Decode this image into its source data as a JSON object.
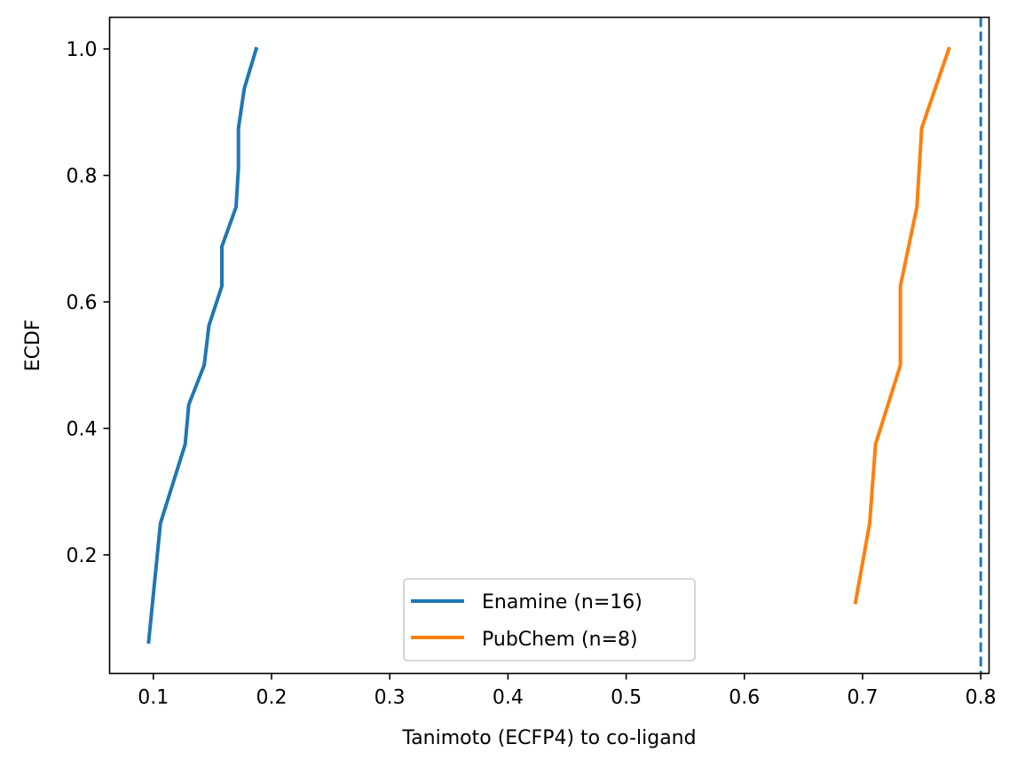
{
  "chart_data": {
    "type": "line",
    "title": "",
    "xlabel": "Tanimoto (ECFP4) to co-ligand",
    "ylabel": "ECDF",
    "xlim": [
      0.063,
      0.807
    ],
    "ylim": [
      0.0125,
      1.05
    ],
    "xticks": [
      {
        "value": 0.1,
        "label": "0.1"
      },
      {
        "value": 0.2,
        "label": "0.2"
      },
      {
        "value": 0.3,
        "label": "0.3"
      },
      {
        "value": 0.4,
        "label": "0.4"
      },
      {
        "value": 0.5,
        "label": "0.5"
      },
      {
        "value": 0.6,
        "label": "0.6"
      },
      {
        "value": 0.7,
        "label": "0.7"
      },
      {
        "value": 0.8,
        "label": "0.8"
      }
    ],
    "yticks": [
      {
        "value": 0.2,
        "label": "0.2"
      },
      {
        "value": 0.4,
        "label": "0.4"
      },
      {
        "value": 0.6,
        "label": "0.6"
      },
      {
        "value": 0.8,
        "label": "0.8"
      },
      {
        "value": 1.0,
        "label": "1.0"
      }
    ],
    "grid": false,
    "legend_position": "bottom-center",
    "series": [
      {
        "name": "Enamine (n=16)",
        "color": "#1f77b4",
        "x": [
          0.096,
          0.106,
          0.127,
          0.13,
          0.143,
          0.147,
          0.158,
          0.158,
          0.17,
          0.172,
          0.172,
          0.177,
          0.187
        ],
        "y": [
          0.0625,
          0.25,
          0.375,
          0.4375,
          0.5,
          0.5625,
          0.625,
          0.6875,
          0.75,
          0.8125,
          0.875,
          0.9375,
          1.0
        ]
      },
      {
        "name": "PubChem (n=8)",
        "color": "#ff7f0e",
        "x": [
          0.694,
          0.706,
          0.711,
          0.732,
          0.732,
          0.746,
          0.75,
          0.773
        ],
        "y": [
          0.125,
          0.25,
          0.375,
          0.5,
          0.625,
          0.75,
          0.875,
          1.0
        ]
      }
    ],
    "reference_line": {
      "orientation": "vertical",
      "x": 0.8,
      "color": "#1f77b4",
      "style": "dashed"
    }
  }
}
